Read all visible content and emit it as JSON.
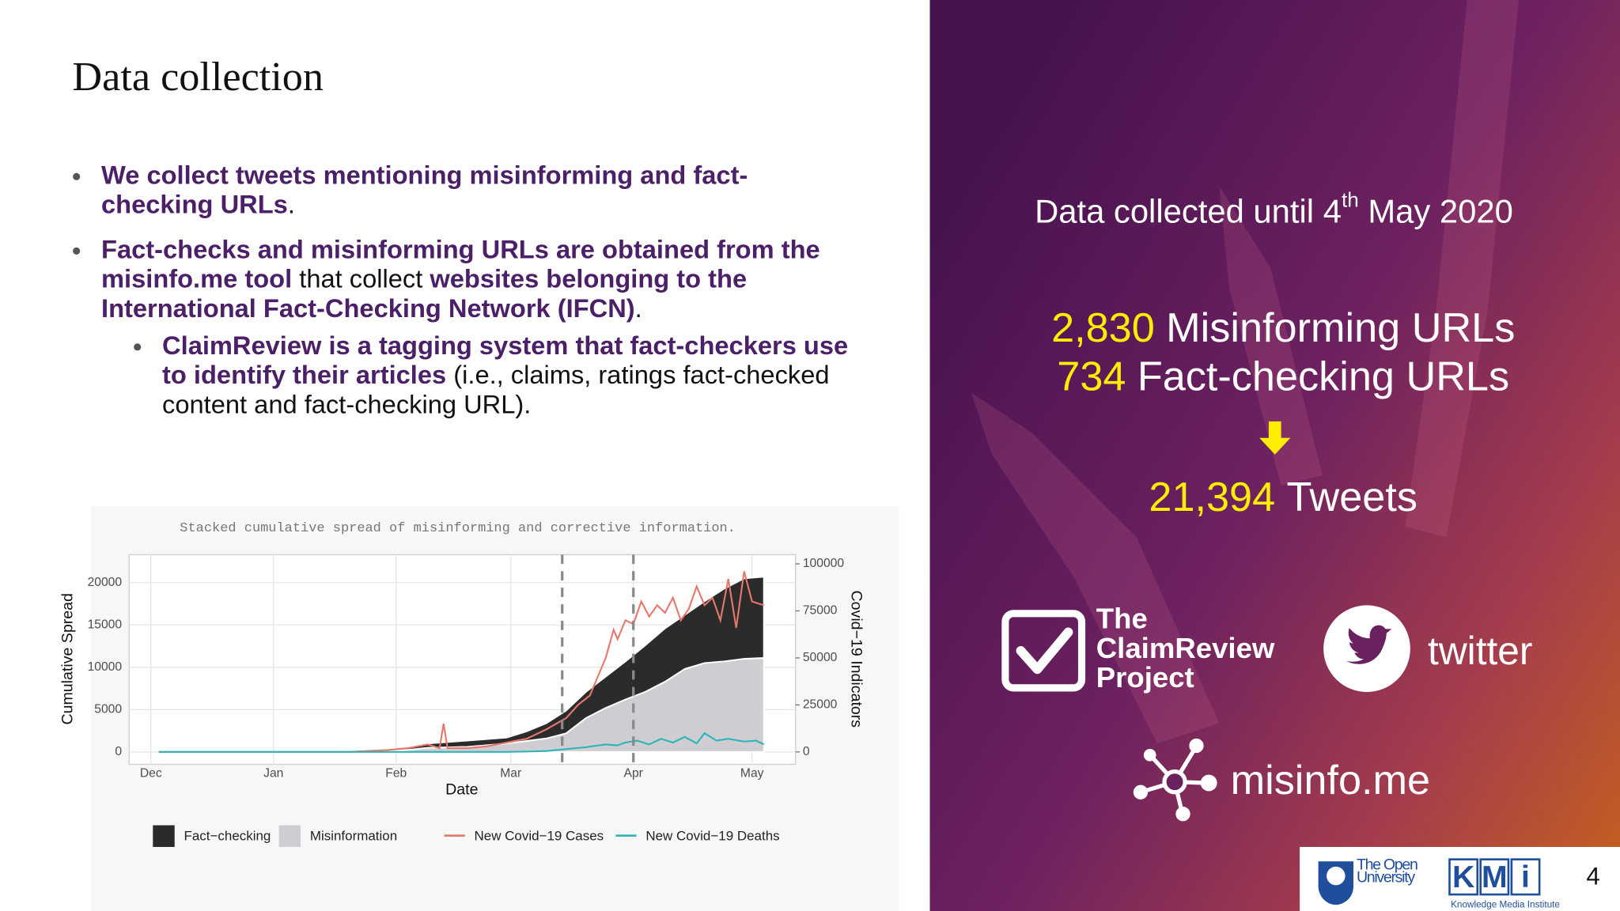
{
  "slide": {
    "title": "Data collection",
    "page_number": "4"
  },
  "bullets": [
    {
      "level": 1,
      "lines": [
        [
          {
            "text": "We collect tweets mentioning misinforming and fact-",
            "emph": true
          }
        ],
        [
          {
            "text": "checking URLs",
            "emph": true
          },
          {
            "text": ".",
            "emph": false
          }
        ]
      ]
    },
    {
      "level": 1,
      "lines": [
        [
          {
            "text": "Fact-checks and misinforming URLs are obtained from the",
            "emph": true
          }
        ],
        [
          {
            "text": "misinfo.me tool",
            "emph": true
          },
          {
            "text": " that collect ",
            "emph": false
          },
          {
            "text": "websites belonging to the",
            "emph": true
          }
        ],
        [
          {
            "text": "International Fact-Checking Network (IFCN)",
            "emph": true
          },
          {
            "text": ".",
            "emph": false
          }
        ]
      ]
    },
    {
      "level": 2,
      "lines": [
        [
          {
            "text": "ClaimReview is a tagging system that fact-checkers use",
            "emph": true
          }
        ],
        [
          {
            "text": "to identify their articles",
            "emph": true
          },
          {
            "text": " (i.e., claims, ratings fact-checked",
            "emph": false
          }
        ],
        [
          {
            "text": "content and fact-checking URL).",
            "emph": false
          }
        ]
      ]
    }
  ],
  "chart_data": {
    "type": "area",
    "title": "Stacked cumulative spread of misinforming and corrective information.",
    "x_label": "Date",
    "y_label": "Cumulative Spread",
    "y2_label": "Covid−19 Indicators",
    "x": [
      2,
      30,
      62,
      70,
      80,
      90,
      95,
      100,
      105,
      110,
      115,
      120,
      125,
      130,
      135,
      140,
      145,
      150,
      155
    ],
    "series": [
      {
        "name": "Fact−checking",
        "color": "#2b2b2b",
        "stacked": true,
        "values": [
          0,
          0,
          50,
          500,
          740,
          700,
          1140,
          1800,
          2700,
          3100,
          3700,
          4500,
          5500,
          6300,
          6400,
          7300,
          8600,
          9500,
          9600
        ]
      },
      {
        "name": "Misinformation",
        "color": "#cfcdd1",
        "stacked": true,
        "values": [
          0,
          0,
          100,
          500,
          600,
          1000,
          1300,
          1600,
          2200,
          4000,
          5200,
          6200,
          7100,
          8300,
          9800,
          10500,
          10700,
          11000,
          11100
        ]
      },
      {
        "name": "New Covid−19 Cases",
        "color": "#e8776b",
        "axis": "y2",
        "x": [
          2,
          50,
          60,
          65,
          70,
          73,
          74,
          75,
          80,
          85,
          90,
          95,
          100,
          105,
          108,
          111,
          113,
          115,
          117,
          118,
          120,
          122,
          124,
          126,
          128,
          130,
          132,
          134,
          136,
          138,
          140,
          142,
          144,
          146,
          148,
          150,
          152,
          155
        ],
        "values": [
          0,
          0,
          1000,
          2000,
          4000,
          2000,
          15000,
          2000,
          2000,
          3000,
          5000,
          7000,
          12000,
          18000,
          25000,
          30000,
          40000,
          50000,
          65000,
          60000,
          70000,
          68000,
          80000,
          72000,
          78000,
          74000,
          82000,
          70000,
          76000,
          88000,
          78000,
          82000,
          70000,
          92000,
          66000,
          96000,
          80000,
          78000
        ]
      },
      {
        "name": "New Covid−19 Deaths",
        "color": "#2ab5b8",
        "axis": "y2",
        "x": [
          2,
          90,
          95,
          100,
          105,
          110,
          115,
          118,
          120,
          123,
          126,
          129,
          132,
          135,
          138,
          140,
          143,
          146,
          150,
          153,
          155
        ],
        "values": [
          0,
          0,
          200,
          500,
          1500,
          2500,
          4000,
          3500,
          5000,
          6000,
          4000,
          7000,
          5000,
          8000,
          4500,
          10000,
          6000,
          7000,
          5500,
          6000,
          4000
        ]
      }
    ],
    "xlim": [
      -5.5,
      163
    ],
    "xticks": [
      {
        "value": 0,
        "label": "Dec"
      },
      {
        "value": 31,
        "label": "Jan"
      },
      {
        "value": 62,
        "label": "Feb"
      },
      {
        "value": 91,
        "label": "Mar"
      },
      {
        "value": 122,
        "label": "Apr"
      },
      {
        "value": 152,
        "label": "May"
      }
    ],
    "ylim": [
      -1460,
      23300
    ],
    "yticks": [
      0,
      5000,
      10000,
      15000,
      20000
    ],
    "y2lim": [
      -6600,
      104900
    ],
    "y2ticks": [
      0,
      25000,
      50000,
      75000,
      100000
    ],
    "vlines": [
      104,
      122
    ],
    "grid": true
  },
  "panel": {
    "date_parts": [
      "Data collected until 4",
      "th",
      " May 2020"
    ],
    "stats": [
      {
        "number": "2,830",
        "label": "Misinforming URLs"
      },
      {
        "number": "734",
        "label": "Fact-checking URLs"
      },
      {
        "number": "21,394",
        "label": "Tweets"
      }
    ],
    "claimreview": [
      "The",
      "ClaimReview",
      "Project"
    ],
    "twitter": "twitter",
    "misinfo": "misinfo.me"
  },
  "footer": {
    "ou": [
      "The Open",
      "University"
    ],
    "kmi": [
      "K",
      "M",
      "i"
    ],
    "kmi_name": "Knowledge Media Institute"
  }
}
